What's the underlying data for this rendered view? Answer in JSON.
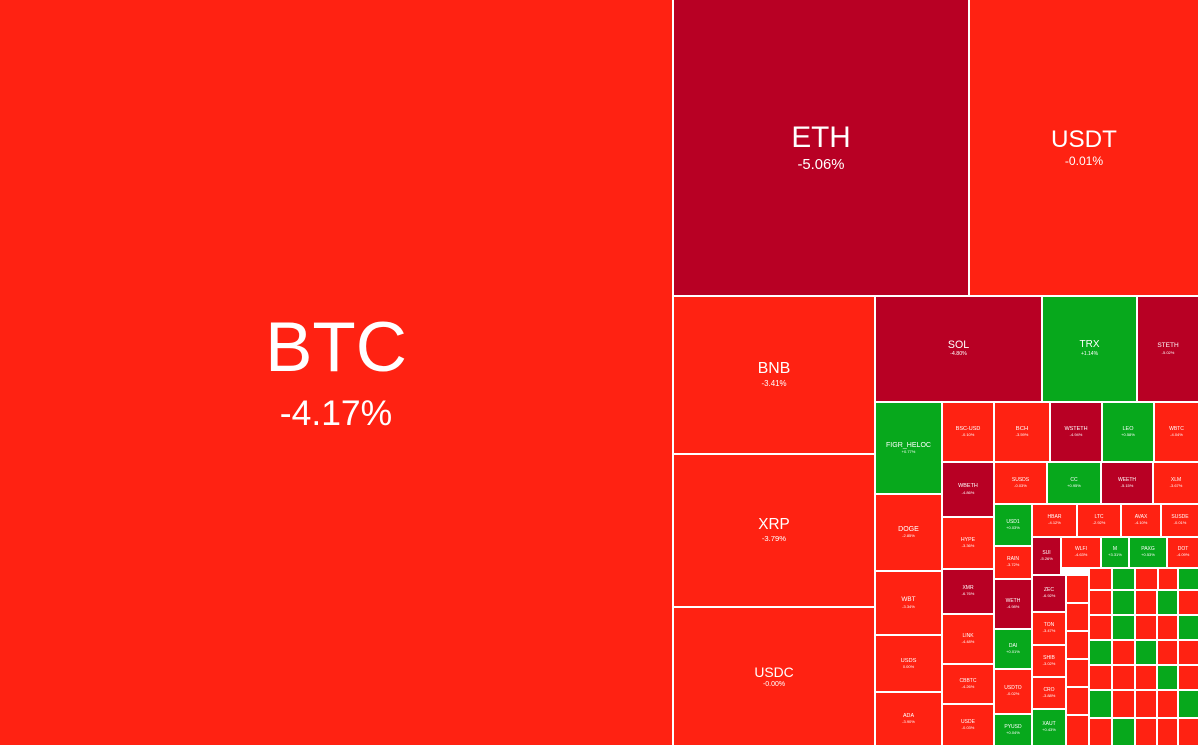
{
  "colors": {
    "down": "#ff2212",
    "down_strong": "#b80024",
    "flat": "#ff2212",
    "up": "#07a81c",
    "text": "#ffffff",
    "gap": "#ffffff"
  },
  "chart_data": {
    "type": "treemap",
    "title": "",
    "unit": "24h % change",
    "items": [
      {
        "symbol": "BTC",
        "change": "-4.17%",
        "change_value": -4.17
      },
      {
        "symbol": "ETH",
        "change": "-5.06%",
        "change_value": -5.06
      },
      {
        "symbol": "USDT",
        "change": "-0.01%",
        "change_value": -0.01
      },
      {
        "symbol": "BNB",
        "change": "-3.41%",
        "change_value": -3.41
      },
      {
        "symbol": "XRP",
        "change": "-3.79%",
        "change_value": -3.79
      },
      {
        "symbol": "USDC",
        "change": "-0.00%",
        "change_value": -0.0
      },
      {
        "symbol": "SOL",
        "change": "-4.80%",
        "change_value": -4.8
      },
      {
        "symbol": "TRX",
        "change": "+1.14%",
        "change_value": 1.14
      },
      {
        "symbol": "STETH",
        "change": "-5.02%",
        "change_value": -5.02
      },
      {
        "symbol": "FIGR_HELOC",
        "change": "+0.77%",
        "change_value": 0.77
      },
      {
        "symbol": "BSC-USD",
        "change": "-0.10%",
        "change_value": -0.1
      },
      {
        "symbol": "BCH",
        "change": "-3.59%",
        "change_value": -3.59
      },
      {
        "symbol": "WSTETH",
        "change": "-4.94%",
        "change_value": -4.94
      },
      {
        "symbol": "LEO",
        "change": "+0.58%",
        "change_value": 0.58
      },
      {
        "symbol": "WBTC",
        "change": "-4.04%",
        "change_value": -4.04
      },
      {
        "symbol": "DOGE",
        "change": "-2.85%",
        "change_value": -2.85
      },
      {
        "symbol": "WBETH",
        "change": "-4.86%",
        "change_value": -4.86
      },
      {
        "symbol": "SUSDS",
        "change": "-0.03%",
        "change_value": -0.03
      },
      {
        "symbol": "CC",
        "change": "+0.95%",
        "change_value": 0.95
      },
      {
        "symbol": "WEETH",
        "change": "-5.15%",
        "change_value": -5.15
      },
      {
        "symbol": "XLM",
        "change": "-3.67%",
        "change_value": -3.67
      },
      {
        "symbol": "HYPE",
        "change": "-3.36%",
        "change_value": -3.36
      },
      {
        "symbol": "USD1",
        "change": "+0.03%",
        "change_value": 0.03
      },
      {
        "symbol": "HBAR",
        "change": "-4.12%",
        "change_value": -4.12
      },
      {
        "symbol": "LTC",
        "change": "-2.92%",
        "change_value": -2.92
      },
      {
        "symbol": "AVAX",
        "change": "-4.10%",
        "change_value": -4.1
      },
      {
        "symbol": "SUSDE",
        "change": "-0.01%",
        "change_value": -0.01
      },
      {
        "symbol": "WBT",
        "change": "-3.34%",
        "change_value": -3.34
      },
      {
        "symbol": "XMR",
        "change": "-6.76%",
        "change_value": -6.76
      },
      {
        "symbol": "RAIN",
        "change": "-3.72%",
        "change_value": -3.72
      },
      {
        "symbol": "SUI",
        "change": "-5.26%",
        "change_value": -5.26
      },
      {
        "symbol": "WLFI",
        "change": "-4.63%",
        "change_value": -4.63
      },
      {
        "symbol": "M",
        "change": "+3.31%",
        "change_value": 3.31
      },
      {
        "symbol": "PAXG",
        "change": "+0.53%",
        "change_value": 0.53
      },
      {
        "symbol": "DOT",
        "change": "-4.09%",
        "change_value": -4.09
      },
      {
        "symbol": "LINK",
        "change": "-4.48%",
        "change_value": -4.48
      },
      {
        "symbol": "WETH",
        "change": "-4.98%",
        "change_value": -4.98
      },
      {
        "symbol": "ZEC",
        "change": "-6.92%",
        "change_value": -6.92
      },
      {
        "symbol": "USDS",
        "change": "0.00%",
        "change_value": 0.0
      },
      {
        "symbol": "DAI",
        "change": "+0.01%",
        "change_value": 0.01
      },
      {
        "symbol": "TON",
        "change": "-3.47%",
        "change_value": -3.47
      },
      {
        "symbol": "CBBTC",
        "change": "-4.26%",
        "change_value": -4.26
      },
      {
        "symbol": "SHIB",
        "change": "-3.02%",
        "change_value": -3.02
      },
      {
        "symbol": "USDTO",
        "change": "-0.02%",
        "change_value": -0.02
      },
      {
        "symbol": "ADA",
        "change": "-3.90%",
        "change_value": -3.9
      },
      {
        "symbol": "USDE",
        "change": "-0.03%",
        "change_value": -0.03
      },
      {
        "symbol": "PYUSD",
        "change": "+0.04%",
        "change_value": 0.04
      },
      {
        "symbol": "CRO",
        "change": "-3.88%",
        "change_value": -3.88
      },
      {
        "symbol": "XAUT",
        "change": "+0.43%",
        "change_value": 0.43
      }
    ]
  }
}
